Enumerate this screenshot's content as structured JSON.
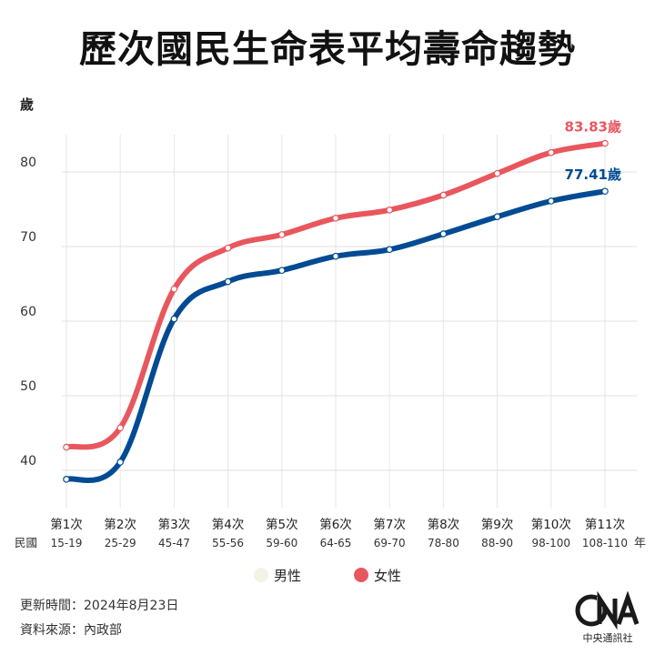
{
  "title": "歷次國民生命表平均壽命趨勢",
  "chart_data": {
    "type": "line",
    "ylabel": "歲",
    "xlabel": "年",
    "row_label": "民國",
    "ylim": [
      35,
      85
    ],
    "yticks": [
      40,
      50,
      60,
      70,
      80
    ],
    "categories": [
      "第1次",
      "第2次",
      "第3次",
      "第4次",
      "第5次",
      "第6次",
      "第7次",
      "第8次",
      "第9次",
      "第10次",
      "第11次"
    ],
    "periods": [
      "15-19",
      "25-29",
      "45-47",
      "55-56",
      "59-60",
      "64-65",
      "69-70",
      "78-80",
      "88-90",
      "98-100",
      "108-110"
    ],
    "series": [
      {
        "name": "男性",
        "color": "#004b93",
        "values": [
          38.8,
          41.1,
          60.3,
          65.3,
          66.8,
          68.7,
          69.6,
          71.7,
          74.0,
          76.1,
          77.41
        ]
      },
      {
        "name": "女性",
        "color": "#e9575e",
        "values": [
          43.1,
          45.7,
          64.3,
          69.8,
          71.6,
          73.8,
          74.9,
          76.9,
          79.8,
          82.6,
          83.83
        ]
      }
    ],
    "end_labels": [
      "77.41歲",
      "83.83歲"
    ]
  },
  "legend_swatch_colors": [
    "#f4f1e6",
    "#e9575e"
  ],
  "footer": {
    "updated": "更新時間：2024年8月23日",
    "source": "資料來源：內政部"
  },
  "logo": {
    "mark": "CNA",
    "text": "中央通訊社"
  }
}
